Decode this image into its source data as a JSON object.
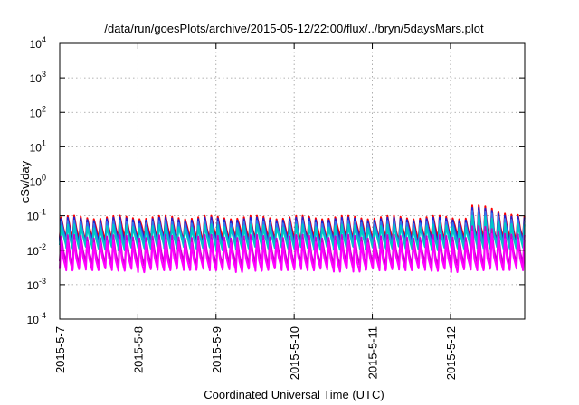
{
  "chart_data": {
    "type": "line",
    "title": "/data/run/goesPlots/archive/2015-05-12/22:00/flux/../bryn/5daysMars.plot",
    "xlabel": "Coordinated Universal Time (UTC)",
    "ylabel": "cSv/day",
    "yscale": "log",
    "ylim": [
      0.0001,
      10000
    ],
    "y_ticks": [
      {
        "base": "10",
        "exp": "-4"
      },
      {
        "base": "10",
        "exp": "-3"
      },
      {
        "base": "10",
        "exp": "-2"
      },
      {
        "base": "10",
        "exp": "-1"
      },
      {
        "base": "10",
        "exp": "0"
      },
      {
        "base": "10",
        "exp": "1"
      },
      {
        "base": "10",
        "exp": "2"
      },
      {
        "base": "10",
        "exp": "3"
      },
      {
        "base": "10",
        "exp": "4"
      }
    ],
    "x_ticks": [
      "2015-5-7",
      "2015-5-8",
      "2015-5-9",
      "2015-5-10",
      "2015-5-11",
      "2015-5-12"
    ],
    "xlim_days": [
      0,
      5.95
    ],
    "grid": true,
    "orbit_period_days": 0.0835,
    "series": [
      {
        "color": "#ff0000",
        "peak": 0.09,
        "trough": 0.022,
        "spike_peak": 0.2
      },
      {
        "color": "#2222cc",
        "peak": 0.08,
        "trough": 0.018,
        "spike_peak": 0.17
      },
      {
        "color": "#3377ee",
        "peak": 0.065,
        "trough": 0.015,
        "spike_peak": 0.14
      },
      {
        "color": "#00c8c8",
        "peak": 0.05,
        "trough": 0.012,
        "spike_peak": 0.1
      },
      {
        "color": "#cc00cc",
        "peak": 0.025,
        "trough": 0.0042,
        "spike_peak": 0.05
      },
      {
        "color": "#ff00ff",
        "peak": 0.018,
        "trough": 0.0028,
        "spike_peak": 0.035
      }
    ],
    "spike_start_day": 5.23
  }
}
